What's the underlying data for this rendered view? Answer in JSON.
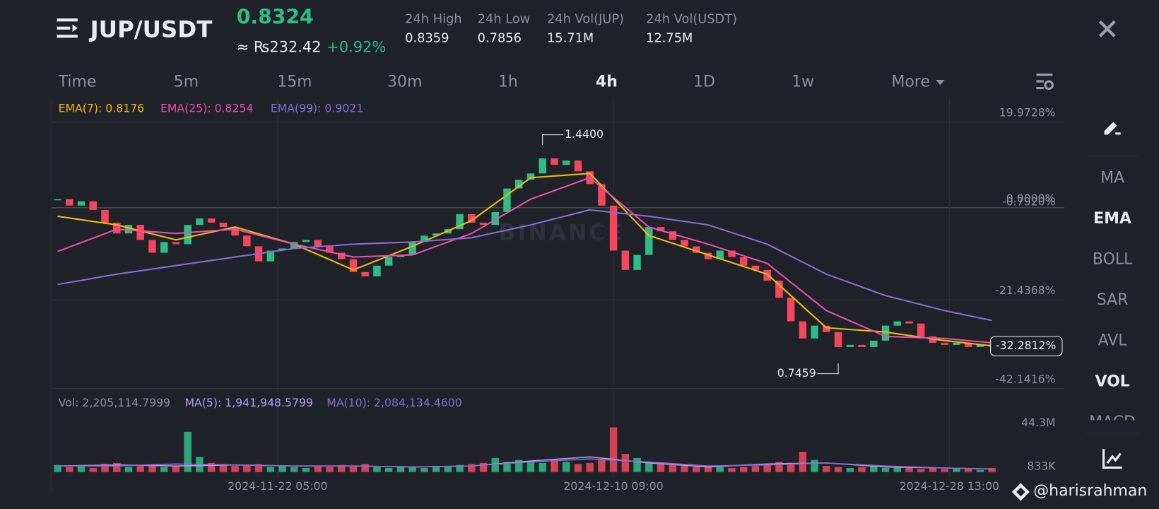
{
  "header": {
    "pair": "JUP/USDT",
    "price": "0.8324",
    "fiat": "≈ ₨232.42",
    "change": "+0.92%",
    "stats": [
      {
        "label": "24h High",
        "value": "0.8359"
      },
      {
        "label": "24h Low",
        "value": "0.7856"
      },
      {
        "label": "24h Vol(JUP)",
        "value": "15.71M"
      },
      {
        "label": "24h Vol(USDT)",
        "value": "12.75M"
      }
    ]
  },
  "tabs": [
    "Time",
    "5m",
    "15m",
    "30m",
    "1h",
    "4h",
    "1D",
    "1w",
    "More"
  ],
  "active_tab": 5,
  "indicators": [
    {
      "label": "MA",
      "active": false
    },
    {
      "label": "EMA",
      "active": true
    },
    {
      "label": "BOLL",
      "active": false
    },
    {
      "label": "SAR",
      "active": false
    },
    {
      "label": "AVL",
      "active": false
    },
    {
      "label": "VOL",
      "active": true
    },
    {
      "label": "MACD",
      "active": false
    }
  ],
  "chart_data": {
    "type": "candlestick",
    "watermark": "BINANCE",
    "up_color": "#2ebd85",
    "down_color": "#f6465d",
    "ylim": [
      -42.1416,
      25.5
    ],
    "yticks": [
      {
        "value": 19.9728,
        "label": "19.9728%"
      },
      {
        "value": 0,
        "label": "0.0000%"
      },
      {
        "value": -0.792,
        "label": "-0.7920%"
      },
      {
        "value": -21.4368,
        "label": "-21.4368%"
      },
      {
        "value": -42.1416,
        "label": "-42.1416%"
      }
    ],
    "xticks": [
      {
        "value": 18.6,
        "label": "2024-11-22 05:00"
      },
      {
        "value": 47,
        "label": "2024-12-10 09:00"
      },
      {
        "value": 75.4,
        "label": "2024-12-28 13:00"
      }
    ],
    "closes": [
      2.0,
      0.5,
      1.5,
      -0.5,
      -3.5,
      -6.0,
      -4.0,
      -7.5,
      -10.5,
      -8.0,
      -8.5,
      -4.0,
      -2.5,
      -3.5,
      -4.5,
      -6.5,
      -9.0,
      -12.5,
      -10.0,
      -9.5,
      -8.0,
      -7.5,
      -9.0,
      -10.5,
      -12.0,
      -15.0,
      -16.0,
      -13.5,
      -11.5,
      -11.0,
      -8.0,
      -6.5,
      -6.0,
      -5.0,
      -1.5,
      -3.5,
      -4.0,
      -1.0,
      4.5,
      6.5,
      8.0,
      11.5,
      10.0,
      11.0,
      8.5,
      5.5,
      0.5,
      -10.0,
      -14.5,
      -11.0,
      -4.5,
      -5.5,
      -7.5,
      -9.0,
      -10.5,
      -12.0,
      -10.0,
      -11.5,
      -13.5,
      -14.5,
      -17.0,
      -21.0,
      -26.5,
      -30.5,
      -27.5,
      -29.0,
      -32.5,
      -32.0,
      -32.5,
      -31.0,
      -27.5,
      -26.5,
      -27.0,
      -30.0,
      -31.5,
      -32.0,
      -31.5,
      -32.5,
      -32.0,
      -32.3
    ],
    "high_label": "1.4400",
    "low_label": "0.7459",
    "last": {
      "value": -32.2812,
      "label": "-32.2812%"
    },
    "series": [
      {
        "name": "EMA(7): 0.8176",
        "color": "#f0b90b",
        "x": [
          0,
          5,
          10,
          15,
          20,
          25,
          30,
          35,
          40,
          45,
          50,
          55,
          60,
          65,
          70,
          75,
          79
        ],
        "values": [
          -2.0,
          -4.0,
          -7.5,
          -4.5,
          -8.5,
          -14.5,
          -9.0,
          -3.0,
          7.0,
          8.0,
          -6.5,
          -11.0,
          -15.5,
          -28.0,
          -29.0,
          -31.0,
          -32.2
        ]
      },
      {
        "name": "EMA(25): 0.8254",
        "color": "#e84fae",
        "x": [
          0,
          5,
          10,
          15,
          20,
          25,
          30,
          35,
          40,
          45,
          50,
          55,
          60,
          65,
          70,
          75,
          79
        ],
        "values": [
          -10.2,
          -5.0,
          -6.0,
          -5.0,
          -8.5,
          -11.5,
          -11.0,
          -6.0,
          2.0,
          7.0,
          -4.5,
          -8.5,
          -13.0,
          -24.0,
          -30.0,
          -30.5,
          -31.5
        ]
      },
      {
        "name": "EMA(99): 0.9021",
        "color": "#8a6bd8",
        "x": [
          0,
          5,
          10,
          15,
          20,
          25,
          30,
          35,
          40,
          45,
          50,
          55,
          60,
          65,
          70,
          75,
          79
        ],
        "values": [
          -17.9,
          -15.5,
          -13.5,
          -11.5,
          -9.5,
          -8.5,
          -8.0,
          -7.0,
          -4.0,
          -0.5,
          -2.0,
          -4.0,
          -8.5,
          -15.5,
          -20.5,
          -24.0,
          -26.3
        ]
      }
    ],
    "volume": {
      "label": "Vol: 2,205,114.7999",
      "vlim": [
        0,
        50
      ],
      "vticks": [
        {
          "value": 44.3,
          "label": "44.3M"
        },
        {
          "value": 0.833,
          "label": "833K"
        }
      ],
      "values": [
        7,
        5,
        6,
        4,
        8,
        9,
        5,
        6,
        7,
        5,
        6,
        40,
        15,
        9,
        8,
        6,
        7,
        8,
        5,
        6,
        5,
        4,
        6,
        5,
        7,
        6,
        8,
        5,
        4,
        6,
        5,
        4,
        6,
        5,
        7,
        8,
        9,
        14,
        10,
        12,
        11,
        9,
        13,
        10,
        8,
        9,
        12,
        44.3,
        18,
        14,
        10,
        8,
        7,
        6,
        5,
        6,
        5,
        4,
        5,
        6,
        8,
        10,
        9,
        20,
        12,
        6,
        5,
        4,
        5,
        6,
        4,
        5,
        4,
        3,
        4,
        3,
        4,
        3,
        2,
        4
      ],
      "series": [
        {
          "name": "MA(5): 1,941,948.5799",
          "color": "#b59cf2",
          "x": [
            0,
            5,
            10,
            15,
            20,
            25,
            30,
            35,
            40,
            45,
            50,
            55,
            60,
            65,
            70,
            75,
            79
          ],
          "values": [
            6,
            7,
            6,
            7,
            6,
            6,
            5,
            6,
            11,
            15,
            9,
            5,
            8,
            9,
            5,
            4,
            3
          ]
        },
        {
          "name": "MA(10): 2,084,134.4600",
          "color": "#8a6bd8",
          "x": [
            0,
            5,
            10,
            15,
            20,
            25,
            30,
            35,
            40,
            45,
            50,
            55,
            60,
            65,
            70,
            75,
            79
          ],
          "values": [
            6,
            6,
            8,
            7,
            6,
            6,
            5,
            6,
            10,
            13,
            10,
            6,
            7,
            9,
            6,
            4,
            3
          ]
        }
      ]
    }
  },
  "footer": {
    "handle": "@harisrahman"
  }
}
